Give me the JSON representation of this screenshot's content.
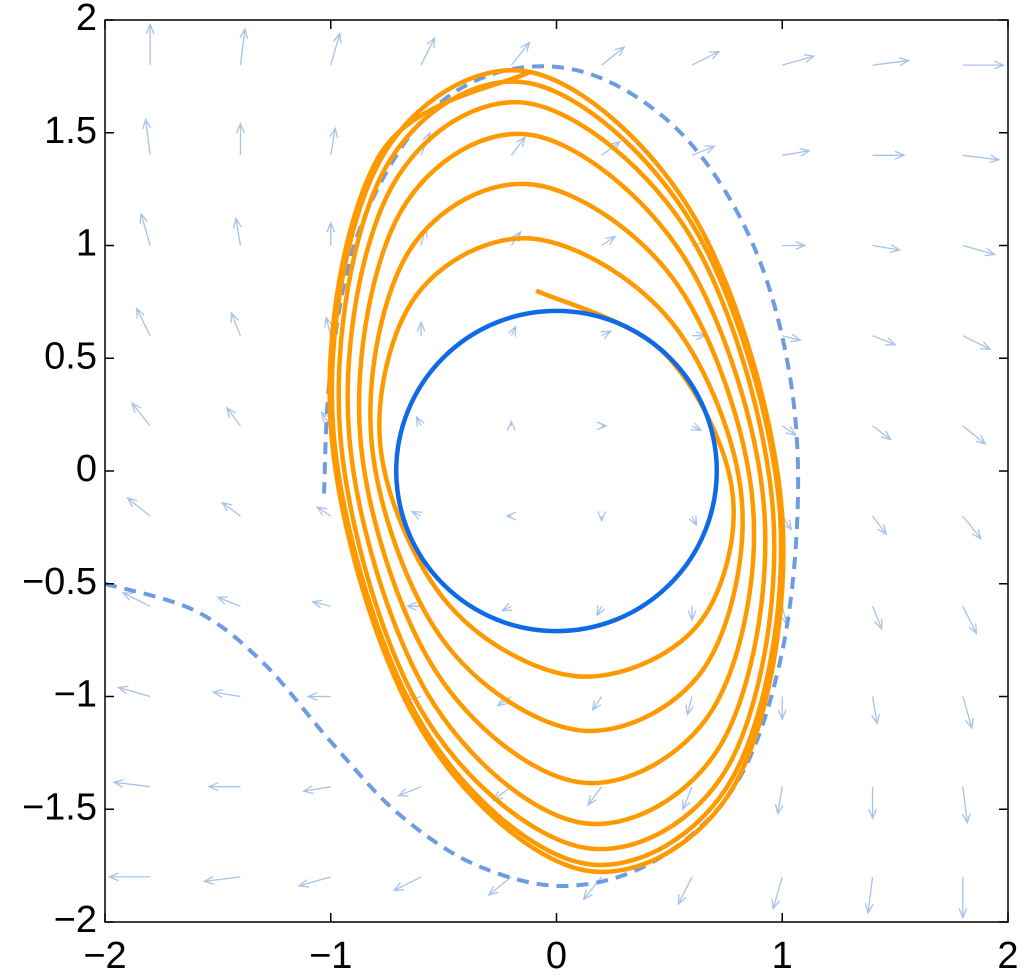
{
  "chart_data": {
    "type": "phase_portrait",
    "xlim": [
      -2,
      2
    ],
    "ylim": [
      -2,
      2
    ],
    "xticks": [
      {
        "value": -2,
        "label": "−2"
      },
      {
        "value": -1,
        "label": "−1"
      },
      0,
      1,
      2
    ],
    "yticks": [
      {
        "value": -2,
        "label": "−2"
      },
      {
        "value": -1.5,
        "label": "−1.5"
      },
      {
        "value": -1,
        "label": "−1"
      },
      {
        "value": -0.5,
        "label": "−0.5"
      },
      0,
      0.5,
      1,
      1.5,
      2
    ],
    "series": [
      {
        "kind": "quiver",
        "color": "#a8c3ea",
        "x": [
          -1.8,
          -1.4,
          -1.0,
          -0.6,
          -0.2,
          0.2,
          0.6,
          1.0,
          1.4,
          1.8,
          -1.8,
          -1.4,
          -1.0,
          -0.6,
          -0.2,
          0.2,
          0.6,
          1.0,
          1.4,
          1.8,
          -1.8,
          -1.4,
          -1.0,
          -0.6,
          -0.2,
          0.2,
          0.6,
          1.0,
          1.4,
          1.8,
          -1.8,
          -1.4,
          -1.0,
          -0.6,
          -0.2,
          0.2,
          0.6,
          1.0,
          1.4,
          1.8,
          -1.8,
          -1.4,
          -1.0,
          -0.6,
          -0.2,
          0.2,
          0.6,
          1.0,
          1.4,
          1.8,
          -1.8,
          -1.4,
          -1.0,
          -0.6,
          -0.2,
          0.2,
          0.6,
          1.0,
          1.4,
          1.8,
          -1.8,
          -1.4,
          -1.0,
          -0.6,
          -0.2,
          0.2,
          0.6,
          1.0,
          1.4,
          1.8,
          -1.8,
          -1.4,
          -1.0,
          -0.6,
          -0.2,
          0.2,
          0.6,
          1.0,
          1.4,
          1.8,
          -1.8,
          -1.4,
          -1.0,
          -0.6,
          -0.2,
          0.2,
          0.6,
          1.0,
          1.4,
          1.8,
          -1.8,
          -1.4,
          -1.0,
          -0.6,
          -0.2,
          0.2,
          0.6,
          1.0,
          1.4,
          1.8
        ],
        "y": [
          -1.8,
          -1.8,
          -1.8,
          -1.8,
          -1.8,
          -1.8,
          -1.8,
          -1.8,
          -1.8,
          -1.8,
          -1.4,
          -1.4,
          -1.4,
          -1.4,
          -1.4,
          -1.4,
          -1.4,
          -1.4,
          -1.4,
          -1.4,
          -1.0,
          -1.0,
          -1.0,
          -1.0,
          -1.0,
          -1.0,
          -1.0,
          -1.0,
          -1.0,
          -1.0,
          -0.6,
          -0.6,
          -0.6,
          -0.6,
          -0.6,
          -0.6,
          -0.6,
          -0.6,
          -0.6,
          -0.6,
          -0.2,
          -0.2,
          -0.2,
          -0.2,
          -0.2,
          -0.2,
          -0.2,
          -0.2,
          -0.2,
          -0.2,
          0.2,
          0.2,
          0.2,
          0.2,
          0.2,
          0.2,
          0.2,
          0.2,
          0.2,
          0.2,
          0.6,
          0.6,
          0.6,
          0.6,
          0.6,
          0.6,
          0.6,
          0.6,
          0.6,
          0.6,
          1.0,
          1.0,
          1.0,
          1.0,
          1.0,
          1.0,
          1.0,
          1.0,
          1.0,
          1.0,
          1.4,
          1.4,
          1.4,
          1.4,
          1.4,
          1.4,
          1.4,
          1.4,
          1.4,
          1.4,
          1.8,
          1.8,
          1.8,
          1.8,
          1.8,
          1.8,
          1.8,
          1.8,
          1.8,
          1.8
        ],
        "u": [
          -0.18,
          -0.16,
          -0.14,
          -0.12,
          -0.1,
          -0.08,
          -0.06,
          -0.04,
          -0.02,
          0,
          -0.16,
          -0.14,
          -0.12,
          -0.1,
          -0.08,
          -0.06,
          -0.04,
          -0.02,
          0,
          0.02,
          -0.14,
          -0.12,
          -0.1,
          -0.08,
          -0.06,
          -0.04,
          -0.02,
          0,
          0.02,
          0.04,
          -0.12,
          -0.1,
          -0.08,
          -0.06,
          -0.04,
          -0.02,
          0,
          0.02,
          0.04,
          0.06,
          -0.1,
          -0.08,
          -0.06,
          -0.04,
          -0.02,
          0,
          0.02,
          0.04,
          0.06,
          0.08,
          -0.08,
          -0.06,
          -0.04,
          -0.02,
          0,
          0.02,
          0.04,
          0.06,
          0.08,
          0.1,
          -0.06,
          -0.04,
          -0.02,
          0,
          0.02,
          0.04,
          0.06,
          0.08,
          0.1,
          0.12,
          -0.04,
          -0.02,
          0,
          0.02,
          0.04,
          0.06,
          0.08,
          0.1,
          0.12,
          0.14,
          -0.02,
          0,
          0.02,
          0.04,
          0.06,
          0.08,
          0.1,
          0.12,
          0.14,
          0.16,
          0,
          0.02,
          0.04,
          0.06,
          0.08,
          0.1,
          0.12,
          0.14,
          0.16,
          0.18
        ],
        "v": [
          0,
          -0.02,
          -0.04,
          -0.06,
          -0.08,
          -0.1,
          -0.12,
          -0.14,
          -0.16,
          -0.18,
          0.02,
          0,
          -0.02,
          -0.04,
          -0.06,
          -0.08,
          -0.1,
          -0.12,
          -0.14,
          -0.16,
          0.04,
          0.02,
          0,
          -0.02,
          -0.04,
          -0.06,
          -0.08,
          -0.1,
          -0.12,
          -0.14,
          0.06,
          0.04,
          0.02,
          0,
          -0.02,
          -0.04,
          -0.06,
          -0.08,
          -0.1,
          -0.12,
          0.08,
          0.06,
          0.04,
          0.02,
          0,
          -0.02,
          -0.04,
          -0.06,
          -0.08,
          -0.1,
          0.1,
          0.08,
          0.06,
          0.04,
          0.02,
          0,
          -0.02,
          -0.04,
          -0.06,
          -0.08,
          0.12,
          0.1,
          0.08,
          0.06,
          0.04,
          0.02,
          0,
          -0.02,
          -0.04,
          -0.06,
          0.14,
          0.12,
          0.1,
          0.08,
          0.06,
          0.04,
          0.02,
          0,
          -0.02,
          -0.04,
          0.16,
          0.14,
          0.12,
          0.1,
          0.08,
          0.06,
          0.04,
          0.02,
          0,
          -0.02,
          0.18,
          0.16,
          0.14,
          0.12,
          0.1,
          0.08,
          0.06,
          0.04,
          0.02,
          0
        ]
      },
      {
        "kind": "dashed_curve",
        "color": "#6e9ce0",
        "x": [
          -2,
          -1.6,
          -1.3,
          -1.0,
          -0.7,
          -0.35,
          0.05,
          0.45,
          0.8,
          1.0,
          1.07,
          1.02,
          0.85,
          0.55,
          0.15,
          -0.25,
          -0.6,
          -0.88,
          -1.0,
          -1.03
        ],
        "y": [
          -0.5,
          -0.62,
          -0.85,
          -1.2,
          -1.52,
          -1.75,
          -1.84,
          -1.72,
          -1.38,
          -0.8,
          -0.1,
          0.5,
          1.05,
          1.5,
          1.76,
          1.77,
          1.55,
          1.05,
          0.45,
          -0.1
        ]
      },
      {
        "kind": "trajectory",
        "color": "#ff9900",
        "x": [
          -0.09,
          0.48,
          0.78,
          0.62,
          0.09,
          -0.48,
          -0.78,
          -0.62,
          -0.1,
          0.51,
          0.82,
          0.65,
          0.1,
          -0.51,
          -0.82,
          -0.65,
          -0.1,
          0.54,
          0.87,
          0.69,
          0.1,
          -0.54,
          -0.87,
          -0.69,
          -0.11,
          0.57,
          0.92,
          0.73,
          0.11,
          -0.57,
          -0.92,
          -0.73,
          -0.12,
          0.6,
          0.96,
          0.76,
          0.12,
          -0.6,
          -0.96,
          -0.76,
          -0.12,
          0.61,
          0.99,
          0.78,
          0.12,
          -0.61,
          -0.99,
          -0.78,
          -0.12,
          0.62,
          1.0,
          0.79,
          0.12,
          -0.62,
          -1.0,
          -0.79,
          -0.12
        ],
        "y": [
          0.8,
          0.52,
          -0.1,
          -0.69,
          -0.91,
          -0.59,
          0.11,
          0.78,
          1.03,
          0.66,
          -0.12,
          -0.88,
          -1.15,
          -0.74,
          0.14,
          0.98,
          1.27,
          0.82,
          -0.15,
          -1.06,
          -1.38,
          -0.88,
          0.16,
          1.15,
          1.49,
          0.94,
          -0.17,
          -1.21,
          -1.56,
          -0.99,
          0.18,
          1.26,
          1.63,
          1.03,
          -0.19,
          -1.31,
          -1.67,
          -1.06,
          0.19,
          1.34,
          1.72,
          1.08,
          -0.19,
          -1.36,
          -1.74,
          -1.1,
          0.2,
          1.38,
          1.77,
          1.11,
          -0.2,
          -1.39,
          -1.77,
          -1.11,
          0.2,
          1.39,
          1.77
        ]
      },
      {
        "kind": "circle",
        "color": "#0f6ae8",
        "center": [
          0,
          0
        ],
        "radius": 0.71
      }
    ]
  }
}
